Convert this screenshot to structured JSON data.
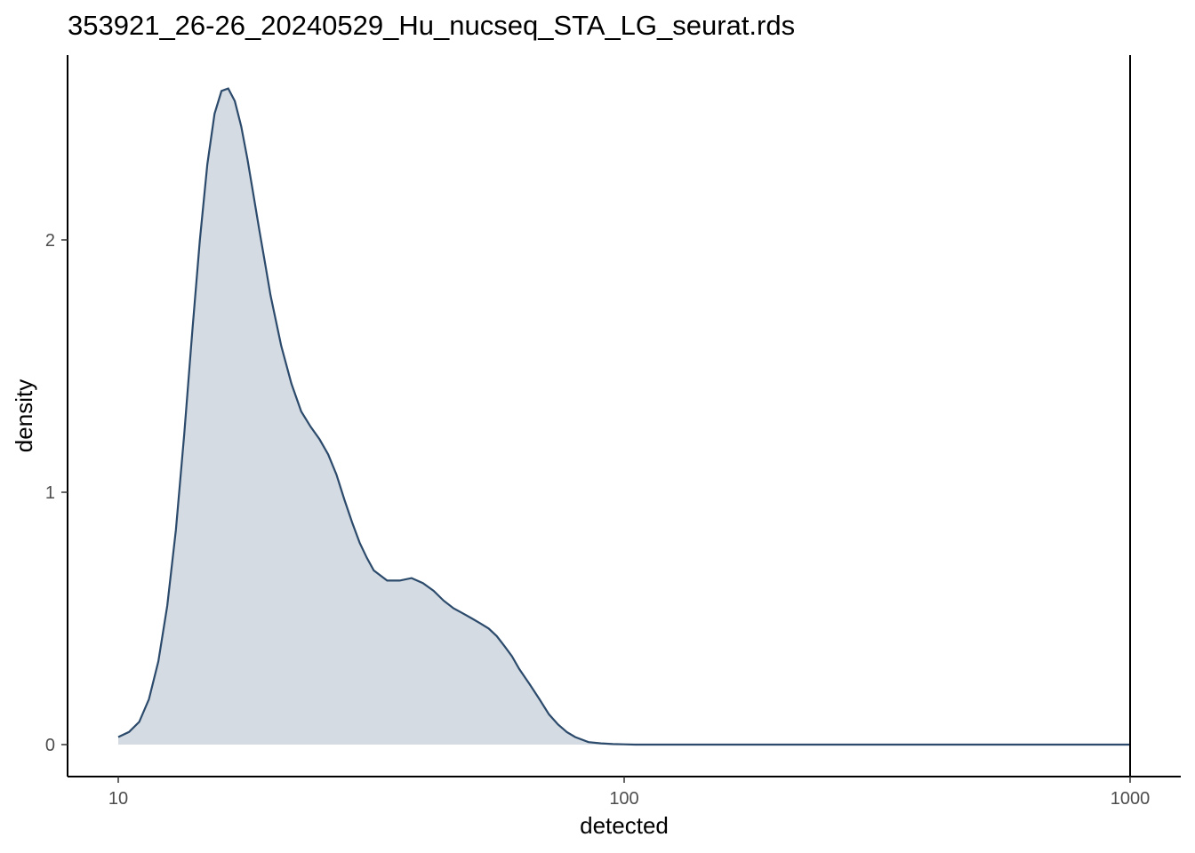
{
  "chart_data": {
    "type": "area",
    "title": "353921_26-26_20240529_Hu_nucseq_STA_LG_seurat.rds",
    "xlabel": "detected",
    "ylabel": "density",
    "x_scale": "log10",
    "xlim": [
      10,
      1000
    ],
    "ylim": [
      -0.12,
      2.75
    ],
    "x_ticks": [
      10,
      100,
      1000
    ],
    "x_tick_labels": [
      "10",
      "100",
      "1000"
    ],
    "y_ticks": [
      0,
      1,
      2
    ],
    "y_tick_labels": [
      "0",
      "1",
      "2"
    ],
    "grid": false,
    "legend": "none",
    "vline": 1000,
    "colors": {
      "line": "#2c4a6b",
      "fill": "#d4dbe2",
      "vline": "#000000"
    },
    "series": [
      {
        "x": [
          10,
          10.5,
          11,
          11.5,
          12,
          12.5,
          13,
          13.5,
          14,
          14.5,
          15,
          15.5,
          16,
          16.5,
          17,
          17.5,
          18,
          18.5,
          19,
          19.5,
          20,
          21,
          22,
          23,
          24,
          25,
          26,
          27,
          28,
          29,
          30,
          31,
          32,
          34,
          36,
          38,
          40,
          42,
          44,
          46,
          48,
          50,
          52,
          54,
          56,
          58,
          60,
          62,
          65,
          68,
          71,
          74,
          77,
          80,
          85,
          90,
          95,
          100,
          105,
          110,
          120,
          150,
          200,
          300,
          500,
          700,
          1000
        ],
        "y": [
          0.03,
          0.05,
          0.09,
          0.18,
          0.33,
          0.55,
          0.85,
          1.23,
          1.63,
          2.0,
          2.3,
          2.5,
          2.59,
          2.6,
          2.55,
          2.45,
          2.32,
          2.18,
          2.04,
          1.91,
          1.78,
          1.58,
          1.43,
          1.32,
          1.26,
          1.21,
          1.15,
          1.07,
          0.97,
          0.88,
          0.8,
          0.74,
          0.69,
          0.65,
          0.65,
          0.66,
          0.64,
          0.61,
          0.57,
          0.54,
          0.52,
          0.5,
          0.48,
          0.46,
          0.43,
          0.39,
          0.35,
          0.3,
          0.24,
          0.18,
          0.12,
          0.08,
          0.05,
          0.03,
          0.01,
          0.005,
          0.002,
          0.001,
          0.0,
          0.0,
          0.0,
          0.0,
          0.0,
          0.0,
          0.0,
          0.0,
          0.0
        ]
      }
    ]
  }
}
